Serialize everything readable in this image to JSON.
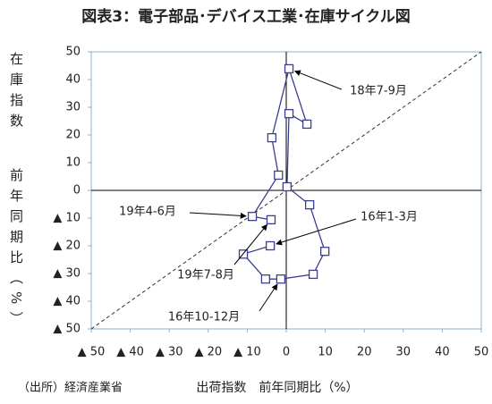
{
  "chart_data": {
    "type": "scatter",
    "title": "図表3：電子部品･デバイス工業･在庫サイクル図",
    "y_label_top": "在庫指数",
    "y_label_bottom": "前年同期比（%）",
    "x_label": "出荷指数　前年同期比（%）",
    "source": "（出所）経済産業省",
    "xlim": [
      -50,
      50
    ],
    "ylim": [
      -50,
      50
    ],
    "xticks": [
      {
        "value": -50,
        "label": "▲ 50"
      },
      {
        "value": -40,
        "label": "▲ 40"
      },
      {
        "value": -30,
        "label": "▲ 30"
      },
      {
        "value": -20,
        "label": "▲ 20"
      },
      {
        "value": -10,
        "label": "▲ 10"
      },
      0,
      10,
      20,
      30,
      40,
      50
    ],
    "yticks": [
      50,
      40,
      30,
      20,
      10,
      0,
      {
        "value": -10,
        "label": "▲ 10"
      },
      {
        "value": -20,
        "label": "▲ 20"
      },
      {
        "value": -30,
        "label": "▲ 30"
      },
      {
        "value": -40,
        "label": "▲ 40"
      },
      {
        "value": -50,
        "label": "▲ 50"
      }
    ],
    "diagonal": true,
    "series": [
      {
        "color": "#3b3f8f",
        "x": [
          -4.1,
          -11,
          -5.3,
          -1.4,
          6.9,
          9.9,
          6,
          0.2,
          0.7,
          5.3,
          0.7,
          -3.7,
          -2,
          -8.7,
          -3.9
        ],
        "values": [
          -20,
          -23,
          -32,
          -32,
          -30.3,
          -22,
          -5.2,
          1.3,
          27.7,
          23.9,
          43.9,
          19,
          5.5,
          -9.4,
          -10.6
        ],
        "point_labels": [
          "16年1-3月",
          null,
          null,
          "16年10-12月",
          null,
          null,
          null,
          null,
          null,
          null,
          "18年7-9月",
          null,
          null,
          "19年4-6月",
          "19年7-8月"
        ]
      }
    ]
  }
}
